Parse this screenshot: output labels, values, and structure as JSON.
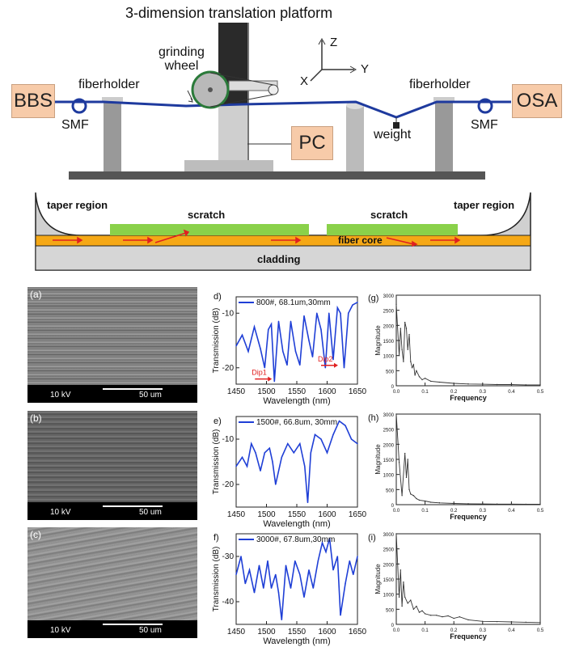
{
  "setup": {
    "title": "3-dimension translation platform",
    "grinding_wheel": [
      "grinding",
      "wheel"
    ],
    "fiberholder_left": "fiberholder",
    "fiberholder_right": "fiberholder",
    "bbs": "BBS",
    "osa": "OSA",
    "smf_left": "SMF",
    "smf_right": "SMF",
    "pc": "PC",
    "weight": "weight",
    "axis_z": "Z",
    "axis_y": "Y",
    "axis_x": "X"
  },
  "fiber_cross_section": {
    "taper_left": "taper region",
    "taper_right": "taper region",
    "scratch_1": "scratch",
    "scratch_2": "scratch",
    "fiber_core": "fiber core",
    "cladding": "cladding"
  },
  "sem_images": [
    {
      "tag": "(a)",
      "voltage": "10 kV",
      "scale": "50 um"
    },
    {
      "tag": "(b)",
      "voltage": "10 kV",
      "scale": "50 um"
    },
    {
      "tag": "(c)",
      "voltage": "10 kV",
      "scale": "50 um"
    }
  ],
  "chart_data": [
    {
      "panel": "d)",
      "type": "line",
      "legend": "800#, 68.1um,30mm",
      "xlabel": "Wavelength (nm)",
      "ylabel": "Transmission (dB)",
      "xlim": [
        1450,
        1650
      ],
      "ylim": [
        -23,
        -7
      ],
      "xticks": [
        "1450",
        "1500",
        "1550",
        "1600",
        "1650"
      ],
      "yticks": [
        "-10",
        "-20"
      ],
      "annotations": [
        "Dip1",
        "Dip2"
      ],
      "x": [
        1450,
        1460,
        1470,
        1480,
        1490,
        1497,
        1503,
        1508,
        1513,
        1520,
        1527,
        1534,
        1540,
        1548,
        1555,
        1562,
        1570,
        1576,
        1583,
        1590,
        1597,
        1603,
        1610,
        1617,
        1622,
        1628,
        1635,
        1642,
        1650
      ],
      "y": [
        -16,
        -14,
        -17,
        -12.5,
        -16.5,
        -20,
        -13,
        -12,
        -22.5,
        -11.5,
        -17,
        -19.5,
        -11.5,
        -17,
        -19.5,
        -10.5,
        -15,
        -18,
        -10,
        -13,
        -20,
        -10,
        -18.5,
        -9,
        -10,
        -20,
        -10,
        -8.5,
        -8
      ]
    },
    {
      "panel": "e)",
      "type": "line",
      "legend": "1500#, 66.8um, 30mm",
      "xlabel": "Wavelength (nm)",
      "ylabel": "Transmission (dB)",
      "xlim": [
        1450,
        1650
      ],
      "ylim": [
        -25,
        -5
      ],
      "xticks": [
        "1450",
        "1500",
        "1550",
        "1600",
        "1650"
      ],
      "yticks": [
        "-10",
        "-20"
      ],
      "x": [
        1450,
        1460,
        1468,
        1475,
        1482,
        1490,
        1497,
        1505,
        1510,
        1515,
        1525,
        1535,
        1545,
        1555,
        1563,
        1568,
        1573,
        1580,
        1590,
        1600,
        1610,
        1620,
        1630,
        1640,
        1650
      ],
      "y": [
        -16,
        -14,
        -16,
        -11,
        -13,
        -17,
        -13,
        -12,
        -15,
        -20,
        -14,
        -11,
        -13,
        -11,
        -16,
        -24,
        -13,
        -9,
        -10,
        -13,
        -9,
        -6,
        -7,
        -10,
        -11
      ]
    },
    {
      "panel": "f)",
      "type": "line",
      "legend": "3000#, 67.8um,30mm",
      "xlabel": "Wavelength (nm)",
      "ylabel": "Transmission (dB)",
      "xlim": [
        1450,
        1650
      ],
      "ylim": [
        -45,
        -25
      ],
      "xticks": [
        "1450",
        "1500",
        "1550",
        "1600",
        "1650"
      ],
      "yticks": [
        "-30",
        "-40"
      ],
      "x": [
        1450,
        1458,
        1465,
        1472,
        1480,
        1488,
        1495,
        1502,
        1508,
        1515,
        1520,
        1525,
        1532,
        1540,
        1547,
        1555,
        1562,
        1570,
        1577,
        1585,
        1592,
        1598,
        1604,
        1610,
        1617,
        1622,
        1630,
        1637,
        1643,
        1650
      ],
      "y": [
        -34,
        -30,
        -36,
        -33,
        -38,
        -32,
        -37,
        -31,
        -37,
        -34,
        -38,
        -44,
        -32,
        -37,
        -31,
        -34,
        -39,
        -33,
        -37,
        -31,
        -27,
        -29,
        -26,
        -33,
        -30,
        -43,
        -36,
        -31,
        -34,
        -30
      ]
    },
    {
      "panel": "(g)",
      "type": "line",
      "xlabel": "Frequency",
      "ylabel": "Magnitude",
      "xlim": [
        0,
        0.5
      ],
      "ylim": [
        0,
        3000
      ],
      "xticks": [
        "0.0",
        "0.1",
        "0.2",
        "0.3",
        "0.4",
        "0.5"
      ],
      "yticks": [
        "0",
        "500",
        "1000",
        "1500",
        "2000",
        "2500",
        "3000"
      ],
      "x": [
        0.0,
        0.01,
        0.015,
        0.02,
        0.025,
        0.03,
        0.035,
        0.04,
        0.045,
        0.05,
        0.055,
        0.06,
        0.065,
        0.07,
        0.08,
        0.09,
        0.1,
        0.12,
        0.15,
        0.2,
        0.25,
        0.3,
        0.35,
        0.4,
        0.45,
        0.5
      ],
      "y": [
        2700,
        1000,
        1900,
        1200,
        800,
        2100,
        1900,
        1200,
        1700,
        800,
        600,
        700,
        350,
        500,
        300,
        200,
        250,
        150,
        120,
        80,
        60,
        50,
        40,
        40,
        30,
        30
      ]
    },
    {
      "panel": "(h)",
      "type": "line",
      "xlabel": "Frequency",
      "ylabel": "Magnitude",
      "xlim": [
        0,
        0.5
      ],
      "ylim": [
        0,
        3000
      ],
      "xticks": [
        "0.0",
        "0.1",
        "0.2",
        "0.3",
        "0.4",
        "0.5"
      ],
      "yticks": [
        "0",
        "500",
        "1000",
        "1500",
        "2000",
        "2500",
        "3000"
      ],
      "x": [
        0.0,
        0.01,
        0.02,
        0.03,
        0.035,
        0.04,
        0.045,
        0.05,
        0.06,
        0.07,
        0.08,
        0.1,
        0.12,
        0.15,
        0.2,
        0.25,
        0.3,
        0.35,
        0.4,
        0.45,
        0.5
      ],
      "y": [
        3000,
        1400,
        300,
        1700,
        900,
        1500,
        500,
        350,
        300,
        200,
        150,
        120,
        80,
        60,
        40,
        30,
        25,
        20,
        20,
        15,
        15
      ]
    },
    {
      "panel": "(i)",
      "type": "line",
      "xlabel": "Frequency",
      "ylabel": "Magnitude",
      "xlim": [
        0,
        0.5
      ],
      "ylim": [
        0,
        3000
      ],
      "xticks": [
        "0.0",
        "0.1",
        "0.2",
        "0.3",
        "0.4",
        "0.5"
      ],
      "yticks": [
        "0",
        "500",
        "1000",
        "1500",
        "2000",
        "2500",
        "3000"
      ],
      "x": [
        0.0,
        0.01,
        0.015,
        0.02,
        0.025,
        0.03,
        0.04,
        0.05,
        0.06,
        0.07,
        0.08,
        0.09,
        0.1,
        0.12,
        0.14,
        0.16,
        0.18,
        0.2,
        0.22,
        0.25,
        0.3,
        0.35,
        0.4,
        0.45,
        0.5
      ],
      "y": [
        3000,
        900,
        1800,
        600,
        1400,
        900,
        700,
        800,
        500,
        600,
        400,
        450,
        350,
        300,
        300,
        250,
        280,
        200,
        250,
        150,
        100,
        90,
        80,
        70,
        60
      ]
    }
  ]
}
